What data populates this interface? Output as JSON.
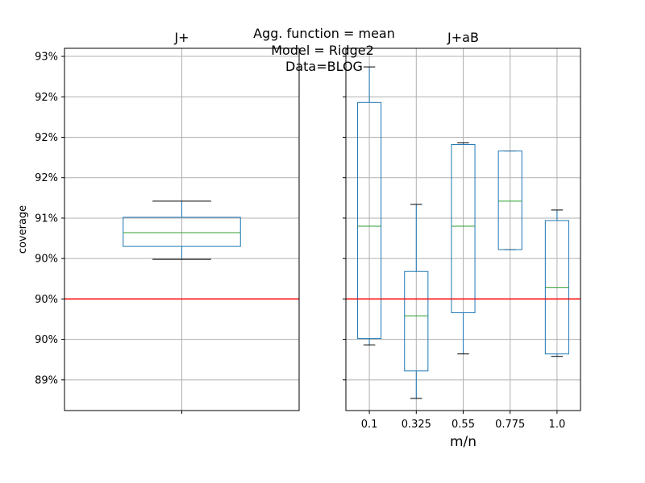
{
  "figure": {
    "suptitle_lines": [
      "Agg. function = mean",
      "Model = Ridge2",
      "Data=BLOG"
    ]
  },
  "chart_data": [
    {
      "type": "box",
      "title": "J+",
      "ylabel": "coverage",
      "xlabel": "",
      "categories": [
        ""
      ],
      "ylim": [
        0.8862,
        0.931
      ],
      "yticks": [
        0.89,
        0.895,
        0.9,
        0.905,
        0.91,
        0.915,
        0.92,
        0.925,
        0.93
      ],
      "yticklabels": [
        "89%",
        "90%",
        "90%",
        "90%",
        "91%",
        "92%",
        "92%",
        "92%",
        "93%"
      ],
      "grid": true,
      "reference_line": {
        "y": 0.9,
        "color": "#ff0000"
      },
      "boxes": [
        {
          "whisker_low": 0.9049,
          "q1": 0.9065,
          "median": 0.9082,
          "q3": 0.9101,
          "whisker_high": 0.9121
        }
      ],
      "colors": {
        "box": "#1f77b4",
        "median": "#2ca02c",
        "whisker_cap": "#000000",
        "grid": "#b0b0b0"
      }
    },
    {
      "type": "box",
      "title": "J+aB",
      "ylabel": "",
      "xlabel": "m/n",
      "categories": [
        "0.1",
        "0.325",
        "0.55",
        "0.775",
        "1.0"
      ],
      "ylim": [
        0.8862,
        0.931
      ],
      "yticks": [
        0.89,
        0.895,
        0.9,
        0.905,
        0.91,
        0.915,
        0.92,
        0.925,
        0.93
      ],
      "yticklabels": [],
      "grid": true,
      "reference_line": {
        "y": 0.9,
        "color": "#ff0000"
      },
      "boxes": [
        {
          "whisker_low": 0.8943,
          "q1": 0.8951,
          "median": 0.909,
          "q3": 0.9243,
          "whisker_high": 0.9287
        },
        {
          "whisker_low": 0.8877,
          "q1": 0.8911,
          "median": 0.8979,
          "q3": 0.9034,
          "whisker_high": 0.9117
        },
        {
          "whisker_low": 0.8932,
          "q1": 0.8983,
          "median": 0.909,
          "q3": 0.9191,
          "whisker_high": 0.9193
        },
        {
          "whisker_low": 0.9061,
          "q1": 0.9061,
          "median": 0.9121,
          "q3": 0.9183,
          "whisker_high": 0.9183
        },
        {
          "whisker_low": 0.8929,
          "q1": 0.8932,
          "median": 0.9014,
          "q3": 0.9097,
          "whisker_high": 0.911
        }
      ],
      "colors": {
        "box": "#1f77b4",
        "median": "#2ca02c",
        "whisker_cap": "#000000",
        "grid": "#b0b0b0"
      }
    }
  ]
}
